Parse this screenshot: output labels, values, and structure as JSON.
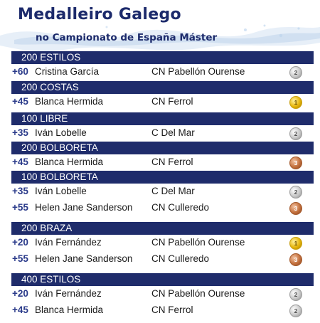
{
  "title": "Medalleiro Galego",
  "subtitle": "no Campionato de España Máster",
  "sections": [
    {
      "event": "200 ESTILOS",
      "rows": [
        {
          "category": "+60",
          "name": "Cristina García",
          "club": "CN Pabellón Ourense",
          "medal": "silver",
          "medal_num": "2"
        }
      ]
    },
    {
      "event": "200 COSTAS",
      "rows": [
        {
          "category": "+45",
          "name": "Blanca Hermida",
          "club": "CN Ferrol",
          "medal": "gold",
          "medal_num": "1"
        }
      ]
    },
    {
      "event": "100 LIBRE",
      "rows": [
        {
          "category": "+35",
          "name": "Iván Lobelle",
          "club": "C Del Mar",
          "medal": "silver",
          "medal_num": "2"
        }
      ]
    },
    {
      "event": "200 BOLBORETA",
      "rows": [
        {
          "category": "+45",
          "name": "Blanca Hermida",
          "club": "CN Ferrol",
          "medal": "bronze",
          "medal_num": "3"
        }
      ]
    },
    {
      "event": "100 BOLBORETA",
      "rows": [
        {
          "category": "+35",
          "name": "Iván Lobelle",
          "club": "C Del Mar",
          "medal": "silver",
          "medal_num": "2"
        },
        {
          "category": "+55",
          "name": "Helen Jane Sanderson",
          "club": "CN Culleredo",
          "medal": "bronze",
          "medal_num": "3"
        }
      ]
    },
    {
      "event": "200 BRAZA",
      "rows": [
        {
          "category": "+20",
          "name": "Iván Fernández",
          "club": "CN Pabellón Ourense",
          "medal": "gold",
          "medal_num": "1"
        },
        {
          "category": "+55",
          "name": "Helen Jane Sanderson",
          "club": "CN Culleredo",
          "medal": "bronze",
          "medal_num": "3"
        }
      ]
    },
    {
      "event": "400 ESTILOS",
      "rows": [
        {
          "category": "+20",
          "name": "Iván Fernández",
          "club": "CN Pabellón Ourense",
          "medal": "silver",
          "medal_num": "2"
        },
        {
          "category": "+45",
          "name": "Blanca Hermida",
          "club": "CN Ferrol",
          "medal": "silver",
          "medal_num": "2"
        }
      ]
    }
  ],
  "colors": {
    "header_bg": "#1f2c6b",
    "title": "#1c2a6b",
    "category": "#2a3a8a"
  },
  "icons": {
    "gold": "gold-medal-icon",
    "silver": "silver-medal-icon",
    "bronze": "bronze-medal-icon"
  }
}
